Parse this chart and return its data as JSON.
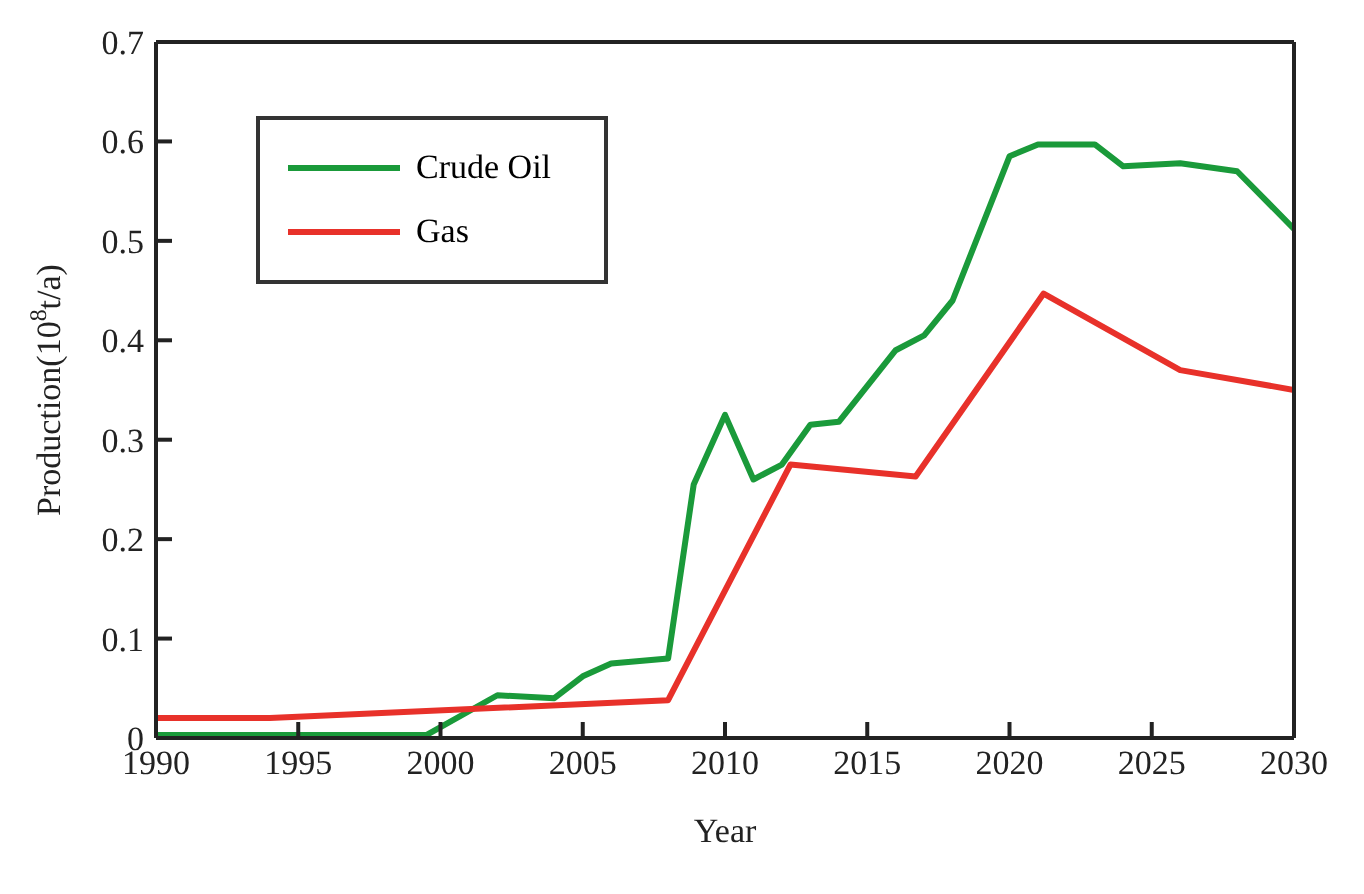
{
  "chart_data": {
    "type": "line",
    "xlabel": "Year",
    "ylabel": "Production(10$^{8}$t/a)",
    "xlim": [
      1990,
      2030
    ],
    "xticks": [
      1990,
      1995,
      2000,
      2005,
      2010,
      2015,
      2020,
      2025,
      2030
    ],
    "ylim": [
      0,
      0.7
    ],
    "yticks": [
      0,
      0.1,
      0.2,
      0.3,
      0.4,
      0.5,
      0.6,
      0.7
    ],
    "legend": "top left",
    "marker": "none",
    "line_style": "solid",
    "series": [
      {
        "name": "Crude Oil",
        "color": "#1a9a3a",
        "x": [
          1990,
          1999.5,
          2002,
          2004,
          2005,
          2006,
          2008,
          2008.9,
          2010,
          2011,
          2012,
          2013,
          2014,
          2016,
          2017,
          2018,
          2020,
          2021,
          2023,
          2024,
          2026,
          2028,
          2030
        ],
        "values": [
          0.003,
          0.003,
          0.043,
          0.04,
          0.062,
          0.075,
          0.08,
          0.255,
          0.325,
          0.26,
          0.275,
          0.315,
          0.318,
          0.39,
          0.405,
          0.44,
          0.585,
          0.597,
          0.597,
          0.575,
          0.578,
          0.57,
          0.512
        ]
      },
      {
        "name": "Gas",
        "color": "#e8312a",
        "x": [
          1990,
          1994,
          2008,
          2012.3,
          2016.7,
          2021.2,
          2026,
          2030
        ],
        "values": [
          0.02,
          0.02,
          0.038,
          0.275,
          0.263,
          0.447,
          0.37,
          0.35
        ]
      }
    ]
  }
}
